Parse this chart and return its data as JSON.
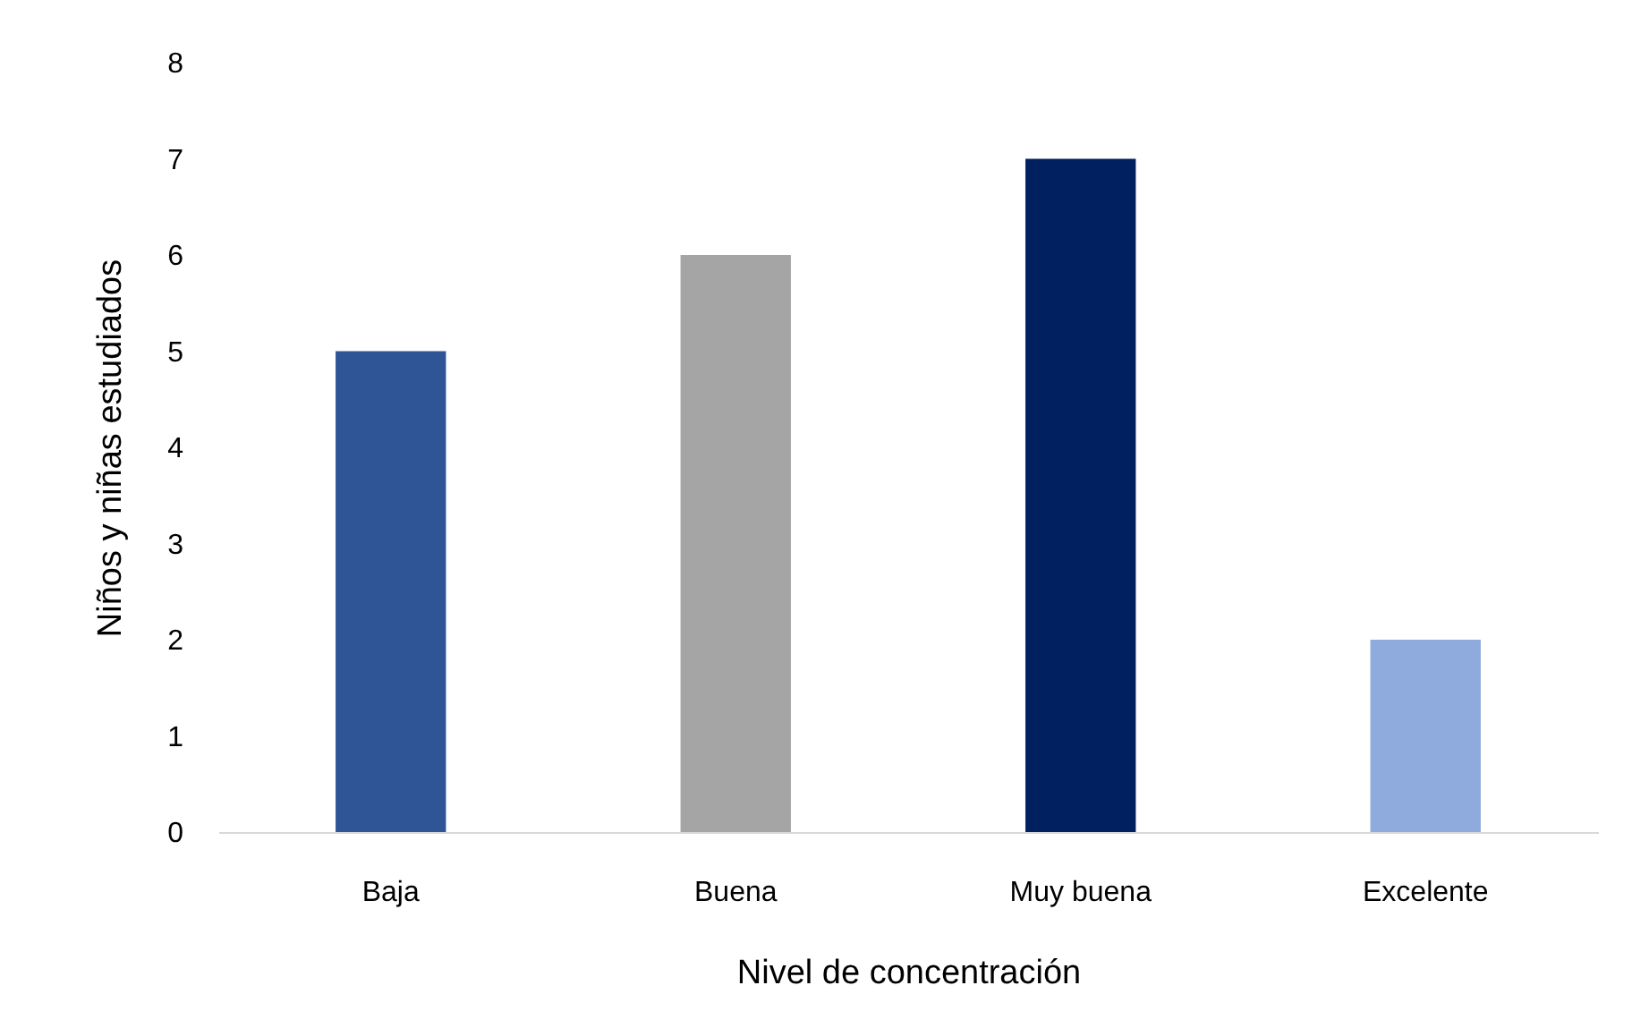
{
  "chart_data": {
    "type": "bar",
    "xlabel": "Nivel de concentración",
    "ylabel": "Niños y niñas estudiados",
    "categories": [
      "Baja",
      "Buena",
      "Muy buena",
      "Excelente"
    ],
    "values": [
      5,
      6,
      7,
      2
    ],
    "colors": [
      "#2f5597",
      "#a5a5a5",
      "#002060",
      "#8faadc"
    ],
    "ylim": [
      0,
      8
    ],
    "yticks": [
      0,
      1,
      2,
      3,
      4,
      5,
      6,
      7,
      8
    ],
    "grid": false,
    "legend": false
  }
}
